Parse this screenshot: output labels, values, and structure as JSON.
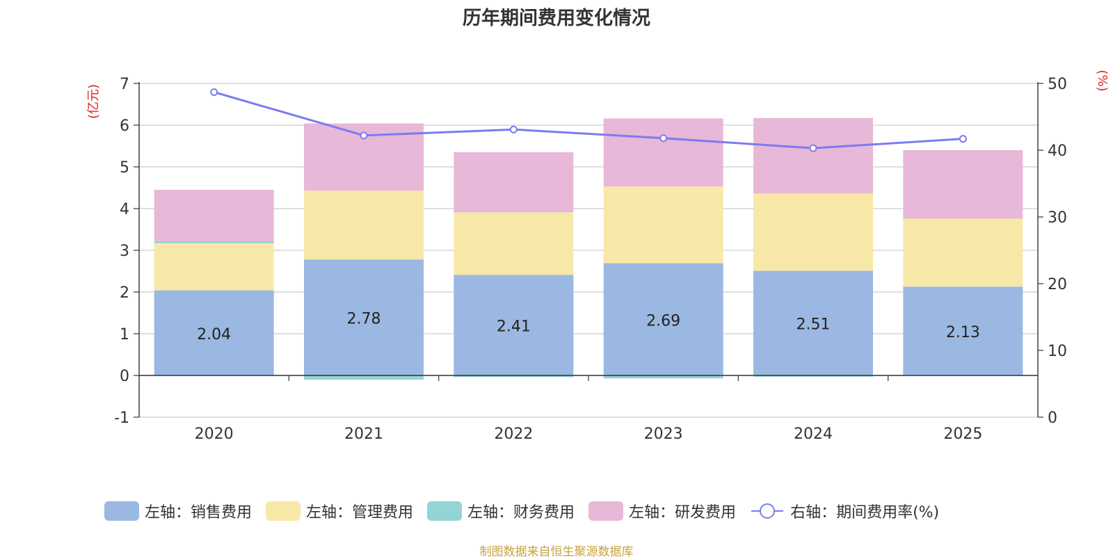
{
  "title": "历年期间费用变化情况",
  "source": "制图数据来自恒生聚源数据库",
  "chart_data": {
    "type": "bar",
    "stacked": true,
    "title": "历年期间费用变化情况",
    "categories": [
      "2020",
      "2021",
      "2022",
      "2023",
      "2024",
      "2025"
    ],
    "left_axis": {
      "label": "(亿元)",
      "min": -1,
      "max": 7,
      "ticks": [
        "-1",
        "0",
        "1",
        "2",
        "3",
        "4",
        "5",
        "6",
        "7"
      ]
    },
    "right_axis": {
      "label": "(%)",
      "min": 0,
      "max": 50,
      "ticks": [
        "0",
        "10",
        "20",
        "30",
        "40",
        "50"
      ]
    },
    "series": [
      {
        "name": "左轴：销售费用",
        "axis": "left",
        "color": "#9bb8e2",
        "values": [
          2.04,
          2.78,
          2.41,
          2.69,
          2.51,
          2.13
        ],
        "labels": [
          "2.04",
          "2.78",
          "2.41",
          "2.69",
          "2.51",
          "2.13"
        ]
      },
      {
        "name": "左轴：管理费用",
        "axis": "left",
        "color": "#f8e8a8",
        "values": [
          1.13,
          1.65,
          1.5,
          1.84,
          1.85,
          1.63
        ]
      },
      {
        "name": "左轴：财务费用",
        "axis": "left",
        "color": "#93d4d4",
        "values": [
          0.05,
          -0.1,
          -0.04,
          -0.07,
          -0.03,
          -0.01
        ]
      },
      {
        "name": "左轴：研发费用",
        "axis": "left",
        "color": "#e8b8d8",
        "values": [
          1.23,
          1.61,
          1.44,
          1.63,
          1.81,
          1.64
        ]
      },
      {
        "name": "右轴：期间费用率(%)",
        "axis": "right",
        "type": "line",
        "color": "#7b7bef",
        "values": [
          48.7,
          42.2,
          43.1,
          41.8,
          40.3,
          41.7
        ]
      }
    ],
    "grid": true,
    "legend_position": "bottom"
  }
}
